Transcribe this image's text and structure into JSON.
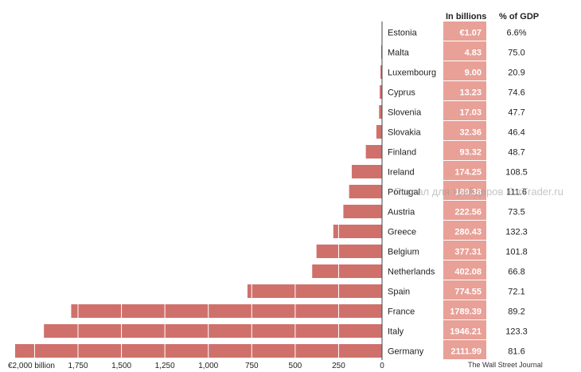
{
  "chart_data": {
    "type": "bar",
    "orientation": "horizontal",
    "columns": {
      "value_header": "In billions",
      "gdp_header": "% of GDP"
    },
    "countries": [
      "Estonia",
      "Malta",
      "Luxembourg",
      "Cyprus",
      "Slovenia",
      "Slovakia",
      "Finland",
      "Ireland",
      "Portugal",
      "Austria",
      "Greece",
      "Belgium",
      "Netherlands",
      "Spain",
      "France",
      "Italy",
      "Germany"
    ],
    "value_labels": [
      "€1.07",
      "4.83",
      "9.00",
      "13.23",
      "17.03",
      "32.36",
      "93.32",
      "174.25",
      "189.38",
      "222.56",
      "280.43",
      "377.31",
      "402.08",
      "774.55",
      "1789.39",
      "1946.21",
      "2111.99"
    ],
    "values": [
      1.07,
      4.83,
      9.0,
      13.23,
      17.03,
      32.36,
      93.32,
      174.25,
      189.38,
      222.56,
      280.43,
      377.31,
      402.08,
      774.55,
      1789.39,
      1946.21,
      2111.99
    ],
    "gdp_pct": [
      "6.6%",
      "75.0",
      "20.9",
      "74.6",
      "47.7",
      "46.4",
      "48.7",
      "108.5",
      "111.6",
      "73.5",
      "132.3",
      "101.8",
      "66.8",
      "72.1",
      "89.2",
      "123.3",
      "81.6"
    ],
    "xlim": [
      0,
      2111.99
    ],
    "x_direction": "reversed",
    "x_ticks": [
      0,
      250,
      500,
      750,
      1000,
      1250,
      1500,
      1750,
      2000
    ],
    "x_tick_labels": [
      "0",
      "250",
      "500",
      "750",
      "1,000",
      "1,250",
      "1,500",
      "1,750",
      "€2,000 billion"
    ],
    "gridlines": "vertical white lines inside bars",
    "colors": {
      "bar": "#d0706b",
      "value_cell": "#e8a097",
      "value_text": "#ffffff",
      "axis": "#444444"
    }
  },
  "source": "The Wall Street Journal",
  "watermark": "Портал для трейдеров ForTrader.ru"
}
